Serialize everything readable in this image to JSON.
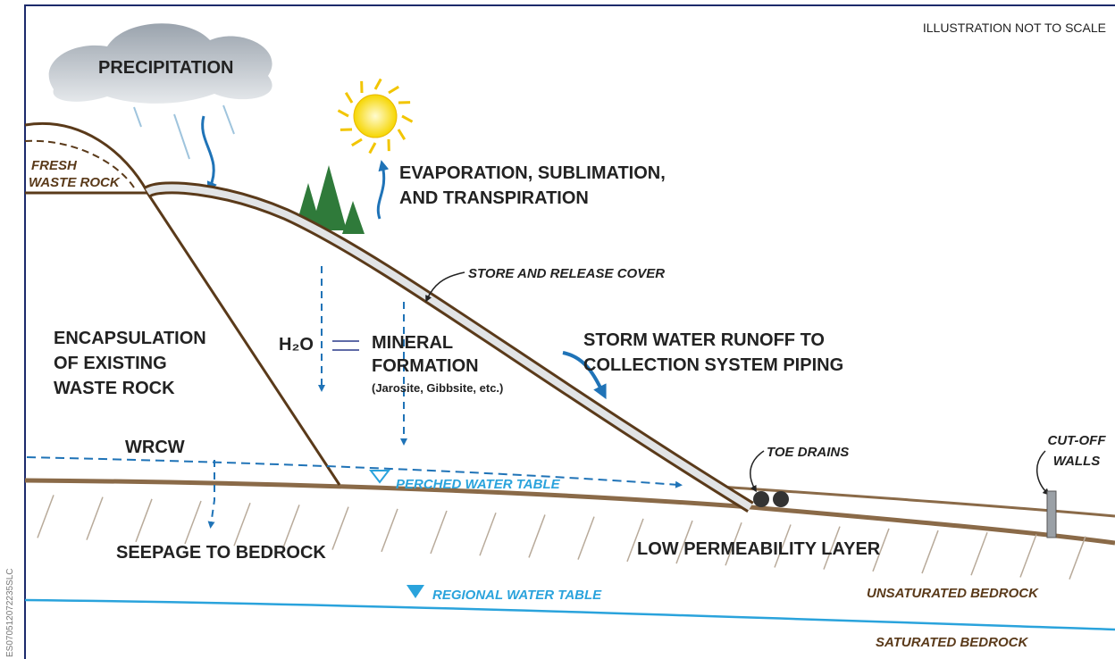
{
  "note_scale": "ILLUSTRATION NOT TO SCALE",
  "labels": {
    "precipitation": "PRECIPITATION",
    "fresh_waste_rock": [
      "FRESH",
      "WASTE ROCK"
    ],
    "evaporation": [
      "EVAPORATION, SUBLIMATION,",
      "AND TRANSPIRATION"
    ],
    "store_release_cover": "STORE AND RELEASE COVER",
    "encapsulation": [
      "ENCAPSULATION",
      "OF EXISTING",
      "WASTE ROCK"
    ],
    "h2o": "H₂O",
    "mineral_formation": [
      "MINERAL",
      "FORMATION",
      "(Jarosite, Gibbsite, etc.)"
    ],
    "storm_water": [
      "STORM WATER RUNOFF TO",
      "COLLECTION SYSTEM PIPING"
    ],
    "wrcw": "WRCW",
    "perched_water_table": "PERCHED WATER TABLE",
    "toe_drains": "TOE DRAINS",
    "cut_off_walls": [
      "CUT-OFF",
      "WALLS"
    ],
    "seepage": "SEEPAGE TO BEDROCK",
    "low_permeability": "LOW PERMEABILITY LAYER",
    "regional_water_table": "REGIONAL WATER TABLE",
    "unsaturated_bedrock": "UNSATURATED BEDROCK",
    "saturated_bedrock": "SATURATED BEDROCK"
  },
  "figure_id": "ES070512072235SLC"
}
